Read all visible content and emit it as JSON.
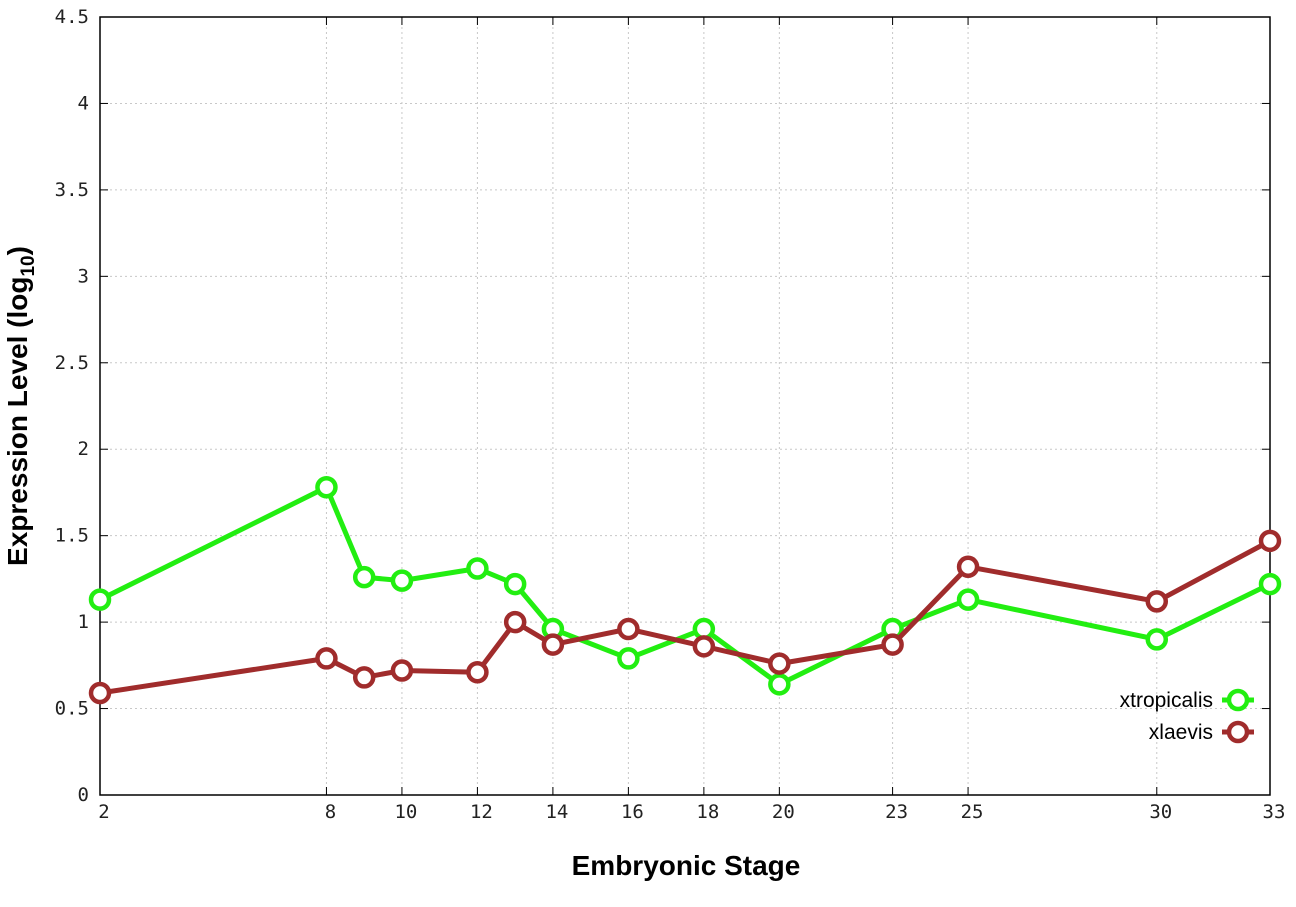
{
  "chart_data": {
    "type": "line",
    "xlabel": "Embryonic Stage",
    "ylabel_main": "Expression Level (log",
    "ylabel_sub": "10",
    "ylabel_close": ")",
    "xlim": [
      2,
      33
    ],
    "ylim": [
      0,
      4.5
    ],
    "x_ticks": [
      2,
      8,
      10,
      12,
      14,
      16,
      18,
      20,
      23,
      25,
      30,
      33
    ],
    "y_ticks": [
      0,
      0.5,
      1,
      1.5,
      2,
      2.5,
      3,
      3.5,
      4,
      4.5
    ],
    "y_tick_labels": [
      "0",
      "0.5",
      "1",
      "1.5",
      "2",
      "2.5",
      "3",
      "3.5",
      "4",
      "4.5"
    ],
    "grid": true,
    "legend_position": "bottom-right",
    "x": [
      2,
      8,
      9,
      10,
      12,
      13,
      14,
      16,
      18,
      20,
      23,
      25,
      30,
      33
    ],
    "series": [
      {
        "name": "xtropicalis",
        "color": "#22ee11",
        "values": [
          1.13,
          1.78,
          1.26,
          1.24,
          1.31,
          1.22,
          0.96,
          0.79,
          0.96,
          0.64,
          0.96,
          1.13,
          0.9,
          1.22
        ]
      },
      {
        "name": "xlaevis",
        "color": "#a02c2c",
        "values": [
          0.59,
          0.79,
          0.68,
          0.72,
          0.71,
          1.0,
          0.87,
          0.96,
          0.86,
          0.76,
          0.87,
          1.32,
          1.12,
          1.47
        ]
      }
    ]
  }
}
